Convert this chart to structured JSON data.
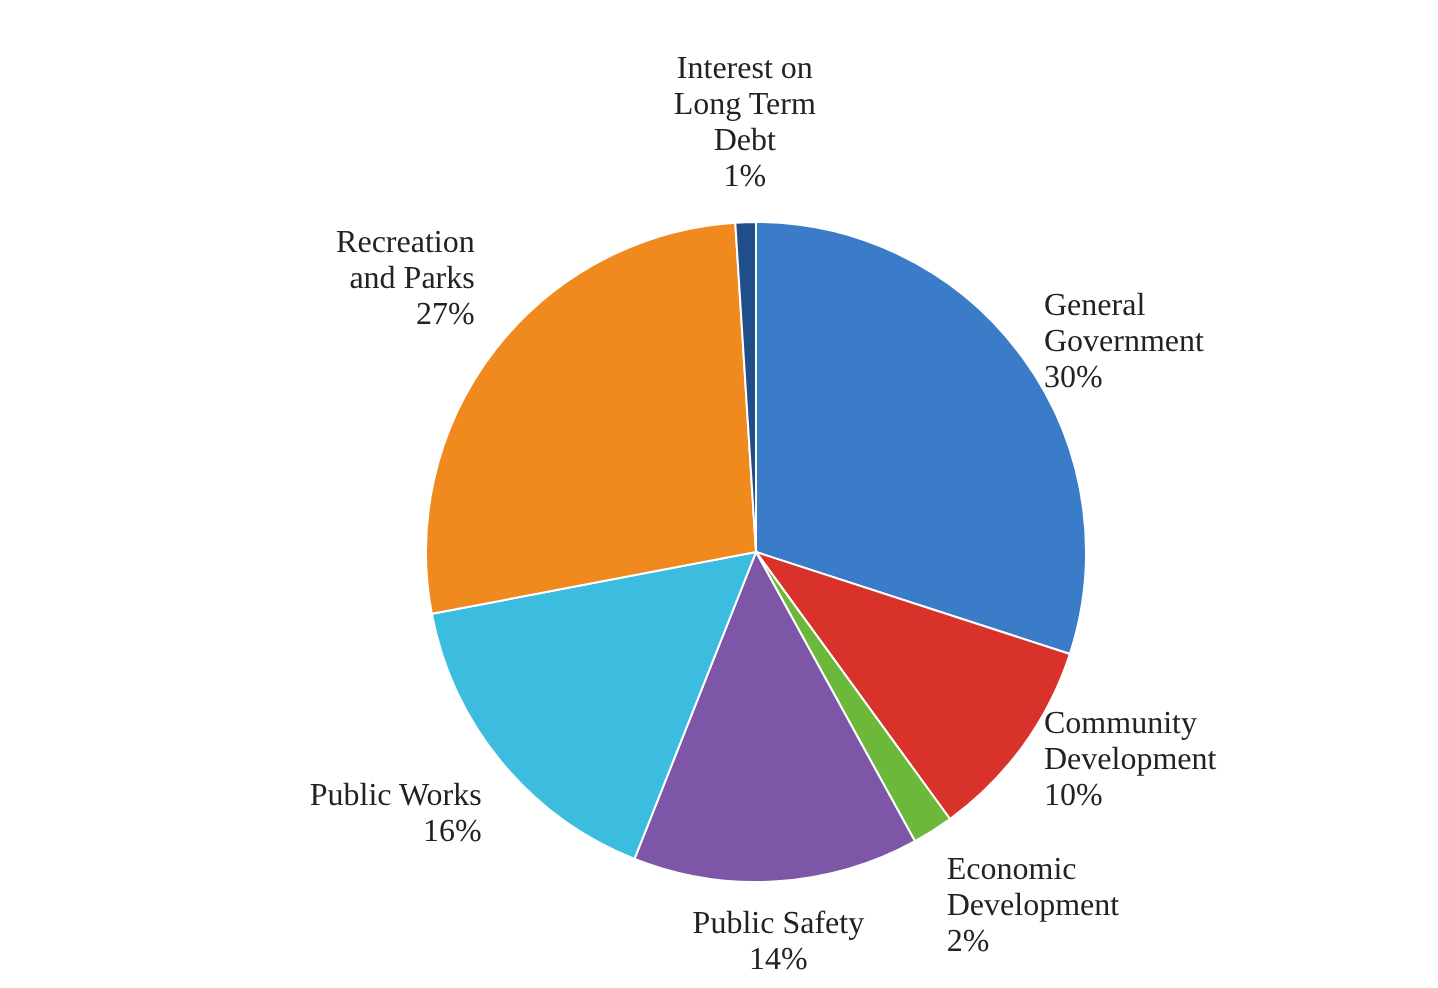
{
  "chart_data": {
    "type": "pie",
    "categories": [
      "General\nGovernment",
      "Community\nDevelopment",
      "Economic\nDevelopment",
      "Public Safety",
      "Public Works",
      "Recreation\nand Parks",
      "Interest on\nLong Term\nDebt"
    ],
    "values": [
      30,
      10,
      2,
      14,
      16,
      27,
      1
    ],
    "colors": [
      "#3a7cc8",
      "#d9322b",
      "#6cb83a",
      "#7d56a8",
      "#3cbde0",
      "#f08a1e",
      "#1f4e8a"
    ],
    "value_labels": [
      "30%",
      "10%",
      "2%",
      "14%",
      "16%",
      "27%",
      "1%"
    ]
  }
}
